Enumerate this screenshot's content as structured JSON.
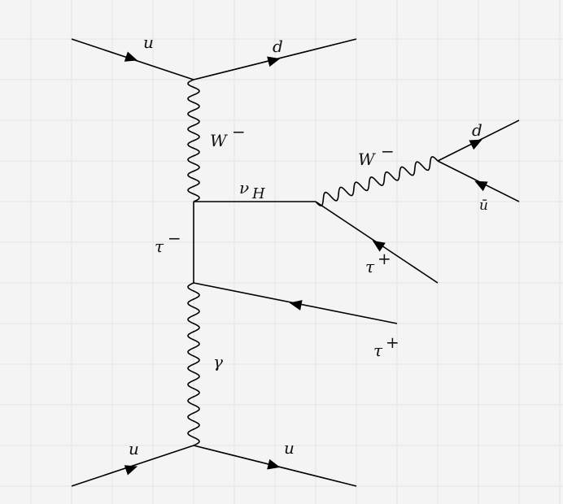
{
  "diagram": {
    "labels": {
      "u_top": "u",
      "d_top": "d",
      "w_vertical": "W",
      "w_vertical_charge": "−",
      "nu_h": "ν",
      "nu_h_sub": "H",
      "w_diag": "W",
      "w_diag_charge": "−",
      "d_right": "d",
      "ubar_right": "ū",
      "tau_minus": "τ",
      "tau_minus_charge": "−",
      "tau_plus_upper": "τ",
      "tau_plus_upper_charge": "+",
      "tau_plus_lower": "τ",
      "tau_plus_lower_charge": "+",
      "gamma": "γ",
      "u_bottom_left": "u",
      "u_bottom_right": "u"
    },
    "colors": {
      "background": "#f4f4f4",
      "grid": "#e3e3e3",
      "lines": "#000000"
    }
  }
}
